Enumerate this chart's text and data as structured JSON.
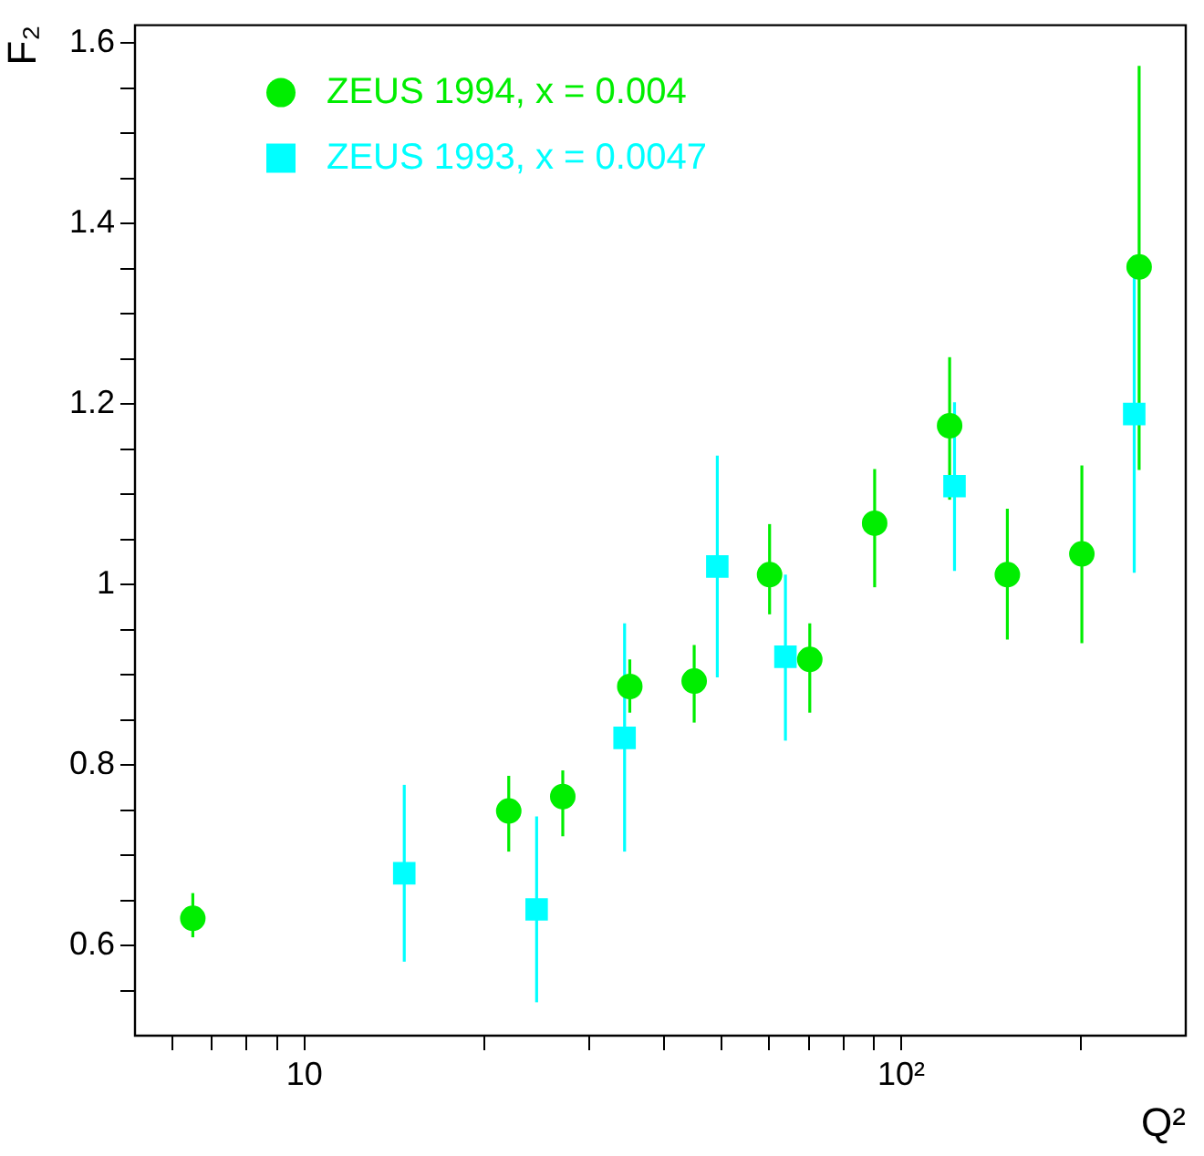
{
  "chart_data": {
    "type": "scatter",
    "xlabel": "Q²",
    "ylabel": "F₂",
    "log": "x",
    "grid": false,
    "legend": "top left",
    "xlim": [
      5.2,
      300
    ],
    "xticks": [
      {
        "value": 6,
        "label": null
      },
      {
        "value": 7,
        "label": null
      },
      {
        "value": 8,
        "label": null
      },
      {
        "value": 9,
        "label": null
      },
      10,
      {
        "value": 20,
        "label": null
      },
      {
        "value": 30,
        "label": null
      },
      {
        "value": 40,
        "label": null
      },
      {
        "value": 50,
        "label": null
      },
      {
        "value": 60,
        "label": null
      },
      {
        "value": 70,
        "label": null
      },
      {
        "value": 80,
        "label": null
      },
      {
        "value": 90,
        "label": null
      },
      {
        "value": 100,
        "label": "10²"
      },
      {
        "value": 200,
        "label": null
      }
    ],
    "ylim": [
      0.5,
      1.62
    ],
    "yticks": [
      {
        "value": 0.55,
        "label": null
      },
      0.6,
      {
        "value": 0.65,
        "label": null
      },
      {
        "value": 0.7,
        "label": null
      },
      {
        "value": 0.75,
        "label": null
      },
      0.8,
      {
        "value": 0.85,
        "label": null
      },
      {
        "value": 0.9,
        "label": null
      },
      {
        "value": 0.95,
        "label": null
      },
      1,
      {
        "value": 1.05,
        "label": null
      },
      {
        "value": 1.1,
        "label": null
      },
      {
        "value": 1.15,
        "label": null
      },
      1.2,
      {
        "value": 1.25,
        "label": null
      },
      {
        "value": 1.3,
        "label": null
      },
      {
        "value": 1.35,
        "label": null
      },
      1.4,
      {
        "value": 1.45,
        "label": null
      },
      {
        "value": 1.5,
        "label": null
      },
      {
        "value": 1.55,
        "label": null
      },
      1.6
    ],
    "series": [
      {
        "name": "ZEUS 1994, x = 0.004",
        "color": "#00ee00",
        "marker": "circle",
        "x": [
          6.5,
          22,
          27.1,
          35.1,
          45,
          60.2,
          70.3,
          90.3,
          120.6,
          150.7,
          200.9,
          250.6
        ],
        "values": [
          0.63,
          0.749,
          0.765,
          0.887,
          0.893,
          1.011,
          0.917,
          1.068,
          1.176,
          1.011,
          1.034,
          1.352
        ],
        "errors": [
          [
            0.609,
            0.658
          ],
          [
            0.704,
            0.788
          ],
          [
            0.721,
            0.794
          ],
          [
            0.858,
            0.917
          ],
          [
            0.847,
            0.933
          ],
          [
            0.967,
            1.067
          ],
          [
            0.858,
            0.957
          ],
          [
            0.997,
            1.128
          ],
          [
            1.094,
            1.252
          ],
          [
            0.939,
            1.084
          ],
          [
            0.935,
            1.132
          ],
          [
            1.127,
            1.575
          ]
        ]
      },
      {
        "name": "ZEUS 1993, x = 0.0047",
        "color": "#00ffff",
        "marker": "square",
        "x": [
          14.7,
          24.5,
          34.4,
          49.2,
          64,
          122.9,
          245.9
        ],
        "values": [
          0.68,
          0.64,
          0.83,
          1.02,
          0.92,
          1.109,
          1.189
        ],
        "errors": [
          [
            0.582,
            0.778
          ],
          [
            0.537,
            0.743
          ],
          [
            0.704,
            0.957
          ],
          [
            0.897,
            1.143
          ],
          [
            0.827,
            1.011
          ],
          [
            1.015,
            1.202
          ],
          [
            1.013,
            1.365
          ]
        ]
      }
    ]
  }
}
